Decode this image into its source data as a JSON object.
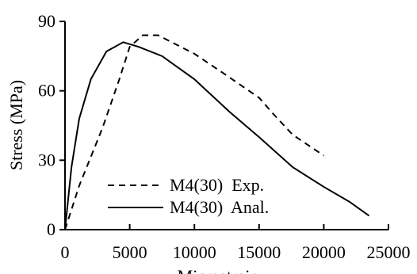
{
  "chart_data": {
    "type": "line",
    "xlabel": "Microstrain",
    "ylabel": "Stress (MPa)",
    "xlim": [
      0,
      25000
    ],
    "ylim": [
      0,
      90
    ],
    "xticks": [
      0,
      5000,
      10000,
      15000,
      20000,
      25000
    ],
    "yticks": [
      0,
      30,
      60,
      90
    ],
    "legend": "lower-left",
    "series": [
      {
        "name": "M4(30)  Exp.",
        "color": "#000000",
        "dash": "dashed",
        "x": [
          0,
          1100,
          2900,
          4200,
          5000,
          6000,
          7200,
          10000,
          12400,
          15000,
          16100,
          17600,
          20000
        ],
        "values": [
          0,
          19,
          44,
          65,
          79,
          84,
          84,
          76,
          67,
          57,
          50,
          41,
          32
        ]
      },
      {
        "name": "M4(30)  Anal.",
        "color": "#000000",
        "dash": "solid",
        "x": [
          0,
          500,
          1100,
          2000,
          3200,
          4500,
          5700,
          7500,
          10000,
          12700,
          15000,
          17600,
          20000,
          22000,
          23500
        ],
        "values": [
          0,
          27,
          48,
          65,
          77,
          81,
          79,
          75,
          65,
          51,
          40,
          27,
          18.5,
          12,
          6
        ]
      }
    ]
  }
}
